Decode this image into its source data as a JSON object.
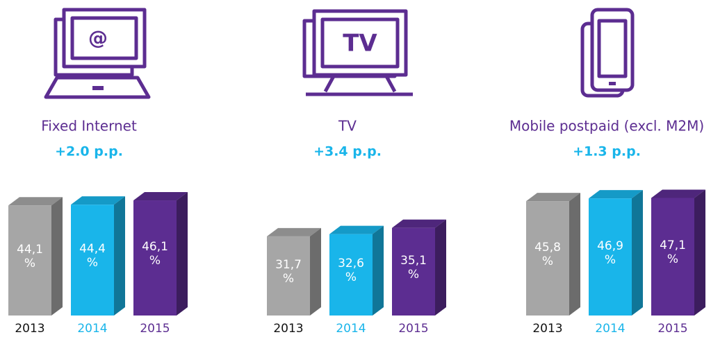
{
  "chart_data": [
    {
      "type": "bar",
      "title": "Fixed Internet",
      "subtitle": "+2.0 p.p.",
      "categories": [
        "2013",
        "2014",
        "2015"
      ],
      "values": [
        44.1,
        44.4,
        46.1
      ],
      "value_labels": [
        "44,1\n%",
        "44,4\n%",
        "46,1\n%"
      ],
      "colors": [
        "#a6a6a6",
        "#19b5ea",
        "#5c2d91"
      ]
    },
    {
      "type": "bar",
      "title": "TV",
      "subtitle": "+3.4 p.p.",
      "categories": [
        "2013",
        "2014",
        "2015"
      ],
      "values": [
        31.7,
        32.6,
        35.1
      ],
      "value_labels": [
        "31,7\n%",
        "32,6\n%",
        "35,1\n%"
      ],
      "colors": [
        "#a6a6a6",
        "#19b5ea",
        "#5c2d91"
      ]
    },
    {
      "type": "bar",
      "title": "Mobile postpaid (excl. M2M)",
      "subtitle": "+1.3 p.p.",
      "categories": [
        "2013",
        "2014",
        "2015"
      ],
      "values": [
        45.8,
        46.9,
        47.1
      ],
      "value_labels": [
        "45,8\n%",
        "46,9\n%",
        "47,1\n%"
      ],
      "colors": [
        "#a6a6a6",
        "#19b5ea",
        "#5c2d91"
      ]
    }
  ]
}
